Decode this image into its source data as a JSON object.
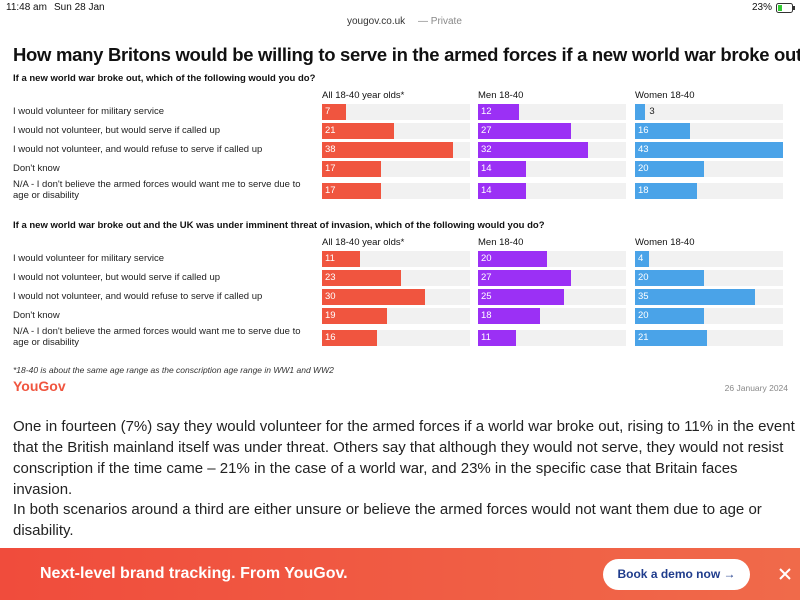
{
  "status_bar": {
    "time": "11:48 am",
    "date": "Sun 28 Jan",
    "battery": "23%"
  },
  "address_bar": {
    "url": "yougov.co.uk",
    "mode": "— Private"
  },
  "figure": {
    "title": "How many Britons would be willing to serve in the armed forces if a new world war broke out?",
    "footnote": "*18-40 is about the same age range as the conscription age range in WW1 and WW2",
    "brand": "YouGov",
    "date": "26 January 2024"
  },
  "chart_data": [
    {
      "type": "bar",
      "title": "If a new world war broke out, which of the following would you do?",
      "categories": [
        "I would volunteer for military service",
        "I would not volunteer, but would serve if called up",
        "I would not volunteer, and would refuse to serve if called up",
        "Don't know",
        "N/A - I don't believe the armed forces would want me to serve due to age or disability"
      ],
      "xlim": [
        0,
        43
      ],
      "series": [
        {
          "name": "All 18-40 year olds*",
          "color": "#f0553f",
          "values": [
            7,
            21,
            38,
            17,
            17
          ]
        },
        {
          "name": "Men 18-40",
          "color": "#9b30f5",
          "values": [
            12,
            27,
            32,
            14,
            14
          ]
        },
        {
          "name": "Women 18-40",
          "color": "#4aa3e8",
          "values": [
            3,
            16,
            43,
            20,
            18
          ]
        }
      ]
    },
    {
      "type": "bar",
      "title": "If a new world war broke out and the UK was under imminent threat of invasion, which of the following would you do?",
      "categories": [
        "I would volunteer for military service",
        "I would not volunteer, but would serve if called up",
        "I would not volunteer, and would refuse to serve if called up",
        "Don't know",
        "N/A - I don't believe the armed forces would want me to serve due to age or disability"
      ],
      "xlim": [
        0,
        43
      ],
      "series": [
        {
          "name": "All 18-40 year olds*",
          "color": "#f0553f",
          "values": [
            11,
            23,
            30,
            19,
            16
          ]
        },
        {
          "name": "Men 18-40",
          "color": "#9b30f5",
          "values": [
            20,
            27,
            25,
            18,
            11
          ]
        },
        {
          "name": "Women 18-40",
          "color": "#4aa3e8",
          "values": [
            4,
            20,
            35,
            20,
            21
          ]
        }
      ]
    }
  ],
  "article": {
    "paragraphs": [
      "One in fourteen (7%) say they would volunteer for the armed forces if a world war broke out, rising to 11% in the event that the British mainland itself was under threat. Others say that although they would not serve, they would not resist conscription if the time came – 21% in the case of a world war, and 23% in the specific case that Britain faces invasion.",
      "In both scenarios around a third are either unsure or believe the armed forces would not want them due to age or disability."
    ]
  },
  "banner": {
    "text": "Next-level brand tracking. From YouGov.",
    "button": "Book a demo now →"
  }
}
